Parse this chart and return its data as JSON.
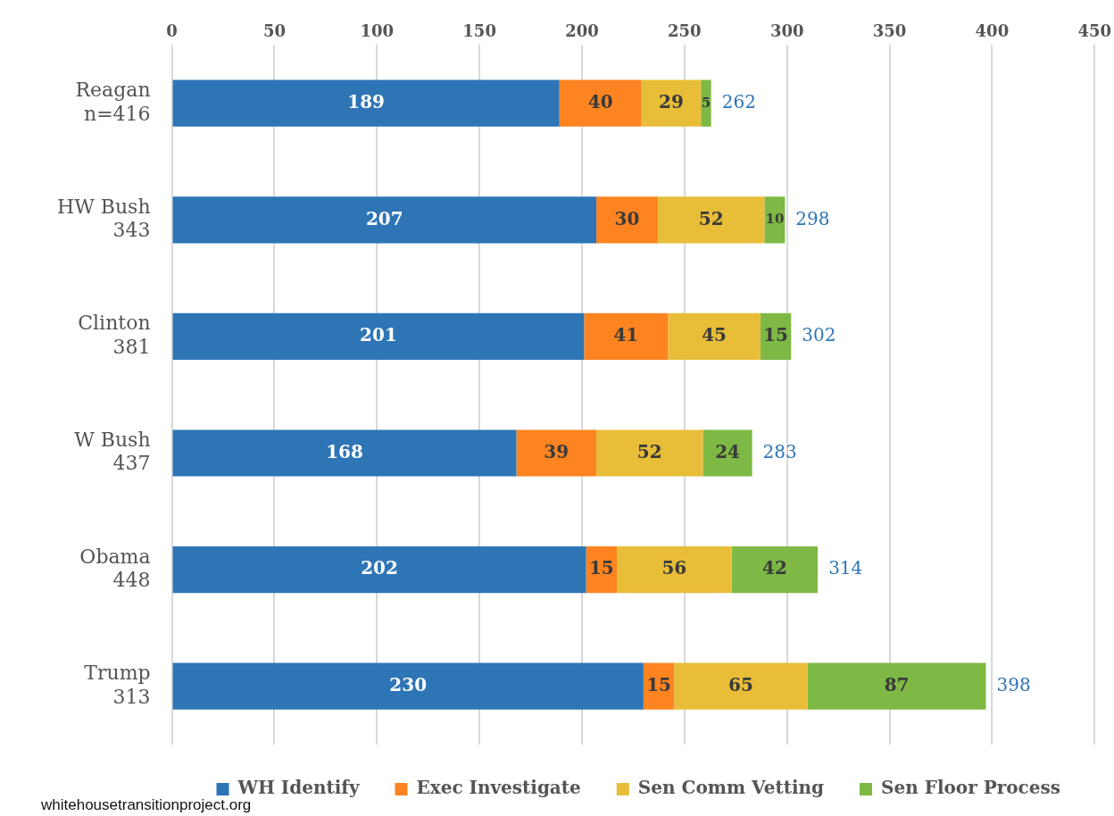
{
  "chart_data": {
    "type": "bar",
    "orientation": "horizontal",
    "stacked": true,
    "categories": [
      "Reagan\nn=416",
      "HW Bush\n343",
      "Clinton\n381",
      "W Bush\n437",
      "Obama\n448",
      "Trump\n313"
    ],
    "series": [
      {
        "name": "WH Identify",
        "color": "#2e75b6",
        "values": [
          189,
          207,
          201,
          168,
          202,
          230
        ]
      },
      {
        "name": "Exec Investigate",
        "color": "#fd8420",
        "values": [
          40,
          30,
          41,
          39,
          15,
          15
        ]
      },
      {
        "name": "Sen Comm Vetting",
        "color": "#e8bd38",
        "values": [
          29,
          52,
          45,
          52,
          56,
          65
        ]
      },
      {
        "name": "Sen Floor Process",
        "color": "#7db944",
        "values": [
          5,
          10,
          15,
          24,
          42,
          87
        ]
      }
    ],
    "xlim": [
      0,
      450
    ],
    "xticks": [
      0,
      50,
      100,
      150,
      200,
      250,
      300,
      350,
      400,
      450
    ],
    "grid": "x",
    "legend": "bottom",
    "data_labels": true,
    "totals": [
      "262",
      "298",
      "302",
      "283",
      "314",
      "398"
    ],
    "annotations": [
      "whitehousetransitionproject.org"
    ]
  }
}
